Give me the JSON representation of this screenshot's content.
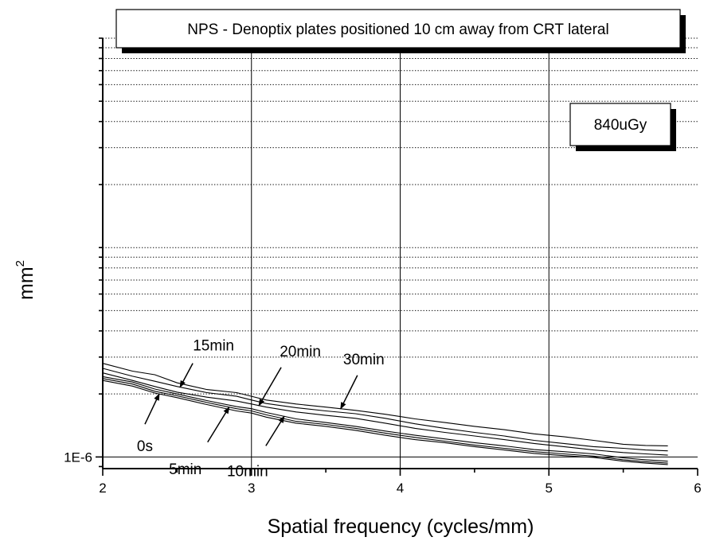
{
  "chart_data": {
    "type": "line",
    "title": "NPS - Denoptix plates positioned 10 cm away from CRT lateral",
    "dose_label": "840uGy",
    "xlabel": "Spatial frequency (cycles/mm)",
    "ylabel": "mm",
    "ylabel_superscript": "2",
    "xlim": [
      2,
      6
    ],
    "x_ticks": [
      "2",
      "3",
      "4",
      "5",
      "6"
    ],
    "y_scale": "log",
    "ylim": [
      8.8e-07,
      0.0001
    ],
    "y_tick_labels": [
      {
        "value": 1e-06,
        "label": "1E-6"
      }
    ],
    "grid": {
      "x": "solid",
      "y": "dotted"
    },
    "x": [
      2.0,
      2.2,
      2.35,
      2.5,
      2.7,
      2.9,
      3.0,
      3.1,
      3.3,
      3.5,
      3.7,
      3.9,
      4.1,
      4.3,
      4.5,
      4.7,
      4.9,
      5.1,
      5.3,
      5.5,
      5.65,
      5.8
    ],
    "series": [
      {
        "name": "0s",
        "values": [
          2.32e-06,
          2.18e-06,
          2.02e-06,
          1.92e-06,
          1.78e-06,
          1.66e-06,
          1.62e-06,
          1.55e-06,
          1.45e-06,
          1.4e-06,
          1.34e-06,
          1.27e-06,
          1.21e-06,
          1.17e-06,
          1.12e-06,
          1.08e-06,
          1.04e-06,
          1.015e-06,
          9.95e-07,
          9.55e-07,
          9.35e-07,
          9.2e-07
        ]
      },
      {
        "name": "5min",
        "values": [
          2.37e-06,
          2.23e-06,
          2.06e-06,
          1.96e-06,
          1.82e-06,
          1.7e-06,
          1.66e-06,
          1.59e-06,
          1.48e-06,
          1.43e-06,
          1.37e-06,
          1.3e-06,
          1.24e-06,
          1.19e-06,
          1.14e-06,
          1.1e-06,
          1.06e-06,
          1.035e-06,
          1.01e-06,
          9.7e-07,
          9.5e-07,
          9.35e-07
        ]
      },
      {
        "name": "10min",
        "values": [
          2.42e-06,
          2.28e-06,
          2.11e-06,
          2e-06,
          1.86e-06,
          1.74e-06,
          1.7e-06,
          1.63e-06,
          1.52e-06,
          1.46e-06,
          1.4e-06,
          1.33e-06,
          1.27e-06,
          1.22e-06,
          1.17e-06,
          1.13e-06,
          1.085e-06,
          1.06e-06,
          1.035e-06,
          9.9e-07,
          9.7e-07,
          9.55e-07
        ]
      },
      {
        "name": "15min",
        "values": [
          2.65e-06,
          2.43e-06,
          2.3e-06,
          2.17e-06,
          2.03e-06,
          1.95e-06,
          1.87e-06,
          1.8e-06,
          1.72e-06,
          1.66e-06,
          1.61e-06,
          1.53e-06,
          1.44e-06,
          1.37e-06,
          1.31e-06,
          1.26e-06,
          1.2e-06,
          1.16e-06,
          1.12e-06,
          1.1e-06,
          1.08e-06,
          1.07e-06
        ]
      },
      {
        "name": "20min",
        "values": [
          2.52e-06,
          2.32e-06,
          2.17e-06,
          2.04e-06,
          1.93e-06,
          1.85e-06,
          1.79e-06,
          1.73e-06,
          1.64e-06,
          1.58e-06,
          1.53e-06,
          1.45e-06,
          1.37e-06,
          1.31e-06,
          1.26e-06,
          1.21e-06,
          1.16e-06,
          1.12e-06,
          1.08e-06,
          1.05e-06,
          1.035e-06,
          1.02e-06
        ]
      },
      {
        "name": "30min",
        "values": [
          2.8e-06,
          2.57e-06,
          2.47e-06,
          2.26e-06,
          2.1e-06,
          2.03e-06,
          1.95e-06,
          1.87e-06,
          1.79e-06,
          1.73e-06,
          1.67e-06,
          1.6e-06,
          1.52e-06,
          1.46e-06,
          1.4e-06,
          1.35e-06,
          1.29e-06,
          1.25e-06,
          1.2e-06,
          1.15e-06,
          1.135e-06,
          1.13e-06
        ]
      }
    ],
    "annotations": [
      {
        "text": "0s",
        "series": "0s",
        "x": 2.38
      },
      {
        "text": "5min",
        "series": "5min",
        "x": 2.85
      },
      {
        "text": "10min",
        "series": "10min",
        "x": 3.22
      },
      {
        "text": "15min",
        "series": "15min",
        "x": 2.52
      },
      {
        "text": "20min",
        "series": "20min",
        "x": 3.05
      },
      {
        "text": "30min",
        "series": "30min",
        "x": 3.6
      }
    ]
  }
}
